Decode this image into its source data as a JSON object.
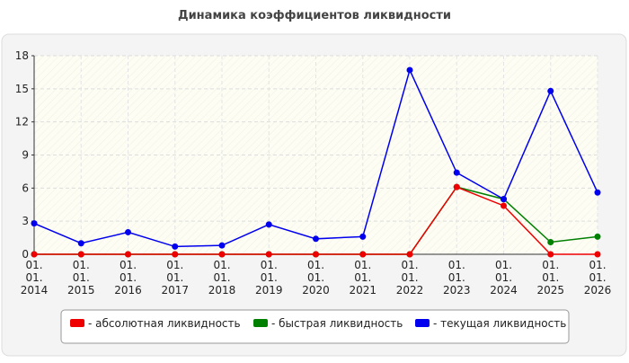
{
  "chart_data": {
    "type": "line",
    "title": "Динамика коэффициентов ликвидности",
    "categories": [
      "01. 01. 2014",
      "01. 01. 2015",
      "01. 01. 2016",
      "01. 01. 2017",
      "01. 01. 2018",
      "01. 01. 2019",
      "01. 01. 2020",
      "01. 01. 2021",
      "01. 01. 2022",
      "01. 01. 2023",
      "01. 01. 2024",
      "01. 01. 2025",
      "01. 01. 2026"
    ],
    "series": [
      {
        "name": "- абсолютная ликвидность",
        "color": "#ee0000",
        "values": [
          0,
          0,
          0,
          0,
          0,
          0,
          0,
          0,
          0,
          6.1,
          4.4,
          0,
          0
        ]
      },
      {
        "name": "- быстрая ликвидность",
        "color": "#008000",
        "values": [
          0,
          0,
          0,
          0,
          0,
          0,
          0,
          0,
          0,
          6.1,
          5.0,
          1.1,
          1.6
        ]
      },
      {
        "name": "- текущая ликвидность",
        "color": "#0000ee",
        "values": [
          2.8,
          1.0,
          2.0,
          0.7,
          0.8,
          2.7,
          1.4,
          1.6,
          16.7,
          7.4,
          5.0,
          14.8,
          5.6
        ]
      }
    ],
    "ylim": [
      0,
      18
    ],
    "yticks": [
      0,
      3,
      6,
      9,
      12,
      15,
      18
    ],
    "grid": true
  }
}
